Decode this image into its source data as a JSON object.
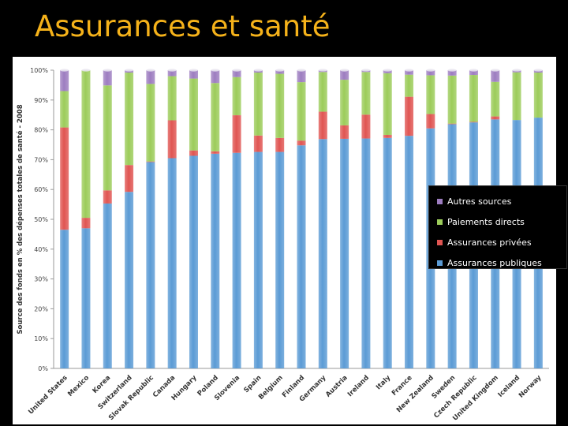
{
  "title": "Assurances et santé",
  "chart_data": {
    "type": "bar",
    "stacked": true,
    "normalized": true,
    "ylabel": "Source des fonds en % des dépenses totales de santé - 2008",
    "xlabel": "",
    "ylim": [
      0,
      100
    ],
    "y_ticks": [
      "0%",
      "10%",
      "20%",
      "30%",
      "40%",
      "50%",
      "60%",
      "70%",
      "80%",
      "90%",
      "100%"
    ],
    "grid": false,
    "legend_position": "right",
    "categories": [
      "United States",
      "Mexico",
      "Korea",
      "Switzerland",
      "Slovak Republic",
      "Canada",
      "Hungary",
      "Poland",
      "Slovenia",
      "Spain",
      "Belgium",
      "Finland",
      "Germany",
      "Austria",
      "Ireland",
      "Italy",
      "France",
      "New Zealand",
      "Sweden",
      "Czech Republic",
      "United Kingdom",
      "Iceland",
      "Norway"
    ],
    "series": [
      {
        "name": "Assurances publiques",
        "color": "#5b9bd5",
        "values": [
          46.5,
          47,
          55.3,
          59.2,
          69.2,
          70.5,
          71.3,
          72,
          72.3,
          72.6,
          72.6,
          74.8,
          76.9,
          77,
          77.1,
          77.3,
          78,
          80.5,
          81.9,
          82.5,
          83.5,
          83.3,
          84.1
        ]
      },
      {
        "name": "Assurances privées",
        "color": "#e05552",
        "values": [
          34.3,
          3.5,
          4.4,
          9.0,
          0.2,
          12.7,
          1.8,
          0.8,
          12.6,
          5.5,
          4.7,
          1.6,
          9.2,
          4.5,
          8.0,
          1.0,
          13.1,
          4.8,
          0.2,
          0.2,
          1.0,
          0,
          0
        ]
      },
      {
        "name": "Paiements directs",
        "color": "#9ccc5a",
        "values": [
          12.2,
          49.5,
          35.2,
          31.0,
          26.0,
          14.8,
          24.1,
          22.9,
          12.8,
          21.1,
          21.5,
          19.6,
          13.3,
          15.3,
          14.3,
          20.7,
          7.4,
          13.0,
          16.1,
          15.7,
          11.6,
          16.0,
          15.1
        ]
      },
      {
        "name": "Autres sources",
        "color": "#9d7dc0",
        "values": [
          7.0,
          0,
          5.1,
          0.8,
          4.6,
          2.0,
          2.8,
          4.3,
          2.3,
          0.8,
          1.2,
          4.0,
          0.6,
          3.2,
          0.6,
          1.0,
          1.5,
          1.7,
          1.8,
          1.6,
          3.9,
          0.7,
          0.8
        ]
      }
    ]
  },
  "legend_order": [
    "Autres sources",
    "Paiements directs",
    "Assurances privées",
    "Assurances publiques"
  ]
}
